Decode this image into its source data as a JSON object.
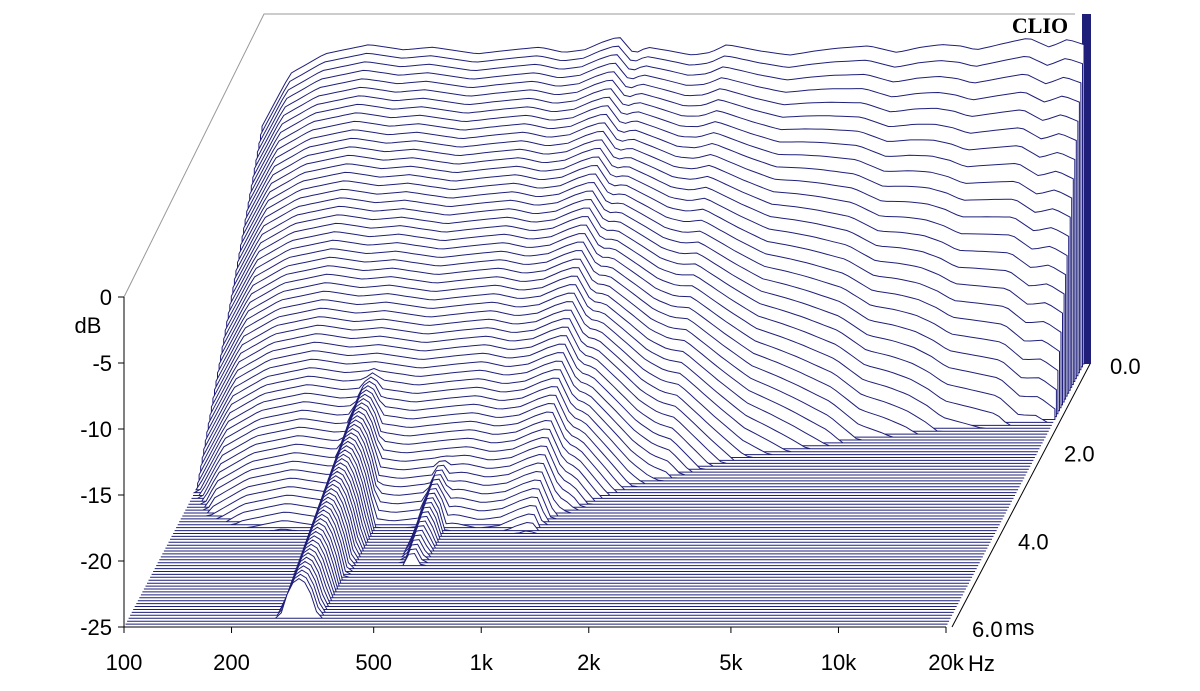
{
  "chart_data": {
    "type": "waterfall",
    "brand": "CLIO",
    "y_unit": "dB",
    "x_unit": "Hz",
    "z_unit": "ms",
    "x_scale": "log",
    "xlim": [
      100,
      20000
    ],
    "ylim": [
      -25,
      0
    ],
    "zlim": [
      0,
      6
    ],
    "y_ticks": [
      {
        "value": 0,
        "label": "0"
      },
      {
        "value": -5,
        "label": "-5"
      },
      {
        "value": -10,
        "label": "-10"
      },
      {
        "value": -15,
        "label": "-15"
      },
      {
        "value": -20,
        "label": "-20"
      },
      {
        "value": -25,
        "label": "-25"
      }
    ],
    "x_ticks": [
      {
        "value": 100,
        "label": "100"
      },
      {
        "value": 200,
        "label": "200"
      },
      {
        "value": 500,
        "label": "500"
      },
      {
        "value": 1000,
        "label": "1k"
      },
      {
        "value": 2000,
        "label": "2k"
      },
      {
        "value": 5000,
        "label": "5k"
      },
      {
        "value": 10000,
        "label": "10k"
      },
      {
        "value": 20000,
        "label": "20k"
      }
    ],
    "z_ticks": [
      {
        "value": 0,
        "label": "0.0"
      },
      {
        "value": 2,
        "label": "2.0"
      },
      {
        "value": 4,
        "label": "4.0"
      },
      {
        "value": 6,
        "label": "6.0"
      }
    ],
    "initial_response": {
      "description_free": true,
      "freq_hz": [
        100,
        120,
        150,
        200,
        250,
        300,
        400,
        500,
        600,
        700,
        800,
        900,
        1000,
        1100,
        1200,
        1400,
        1600,
        1800,
        2000,
        2500,
        3000,
        3500,
        4000,
        5000,
        6000,
        7000,
        8000,
        9000,
        10000,
        12000,
        14000,
        16000,
        18000,
        20000
      ],
      "level_db": [
        -7,
        -3,
        -1.5,
        -0.8,
        -1.2,
        -1.0,
        -1.5,
        -1.2,
        -1.0,
        -1.4,
        -1.2,
        -0.6,
        -0.2,
        -1.5,
        -1.0,
        -1.3,
        -1.6,
        -1.4,
        -0.8,
        -1.3,
        -1.6,
        -1.3,
        -1.1,
        -0.9,
        -1.4,
        -1.0,
        -0.8,
        -0.9,
        -1.2,
        -0.7,
        -0.3,
        -1.0,
        -0.4,
        -0.8
      ]
    },
    "ridges": [
      {
        "freq_hz": 300,
        "peak_db": -13,
        "width_oct": 0.55,
        "decay_ms": 5.8
      },
      {
        "freq_hz": 520,
        "peak_db": -15,
        "width_oct": 0.45,
        "decay_ms": 4.6
      },
      {
        "freq_hz": 1000,
        "peak_db": -7,
        "width_oct": 0.25,
        "decay_ms": 2.4
      },
      {
        "freq_hz": 1400,
        "peak_db": -10,
        "width_oct": 0.2,
        "decay_ms": 1.3
      },
      {
        "freq_hz": 1900,
        "peak_db": -11,
        "width_oct": 0.15,
        "decay_ms": 1.0
      },
      {
        "freq_hz": 2400,
        "peak_db": -15,
        "width_oct": 0.1,
        "decay_ms": 0.7
      }
    ],
    "line_color": "#1f1f7a",
    "floor_color": "#4a4a9a",
    "grid": false
  }
}
